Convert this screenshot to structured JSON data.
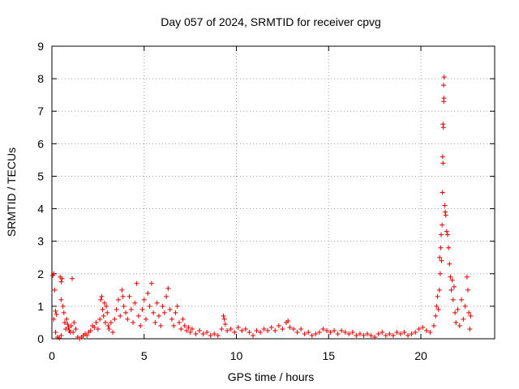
{
  "chart_data": {
    "type": "scatter",
    "title": "Day 057 of 2024, SRMTID for receiver cpvg",
    "xlabel": "GPS time / hours",
    "ylabel": "SRMTID / TECUs",
    "xlim": [
      0,
      24
    ],
    "ylim": [
      0,
      9
    ],
    "xticks": [
      0,
      5,
      10,
      15,
      20
    ],
    "xtick_labels": [
      "0",
      "5",
      "10",
      "15",
      "20"
    ],
    "yticks": [
      0,
      1,
      2,
      3,
      4,
      5,
      6,
      7,
      8,
      9
    ],
    "ytick_labels": [
      "0",
      "1",
      "2",
      "3",
      "4",
      "5",
      "6",
      "7",
      "8",
      "9"
    ],
    "grid": true,
    "marker": "+",
    "color": "#e00000",
    "series": [
      {
        "name": "SRMTID",
        "points": [
          [
            0.05,
            1.95
          ],
          [
            0.1,
            2.0
          ],
          [
            0.15,
            1.5
          ],
          [
            0.2,
            0.85
          ],
          [
            0.25,
            0.75
          ],
          [
            0.1,
            0.6
          ],
          [
            0.2,
            0.2
          ],
          [
            0.3,
            0.05
          ],
          [
            0.4,
            0.02
          ],
          [
            0.5,
            0.1
          ],
          [
            0.45,
            1.9
          ],
          [
            0.5,
            1.75
          ],
          [
            0.55,
            1.85
          ],
          [
            0.5,
            1.2
          ],
          [
            0.6,
            1.0
          ],
          [
            0.65,
            0.8
          ],
          [
            0.7,
            0.5
          ],
          [
            0.75,
            0.3
          ],
          [
            0.8,
            0.6
          ],
          [
            0.85,
            0.45
          ],
          [
            0.9,
            0.35
          ],
          [
            0.95,
            0.25
          ],
          [
            1.0,
            0.2
          ],
          [
            1.05,
            0.4
          ],
          [
            1.1,
            1.85
          ],
          [
            1.15,
            0.2
          ],
          [
            1.2,
            0.5
          ],
          [
            1.3,
            0.3
          ],
          [
            1.4,
            0.05
          ],
          [
            1.5,
            0.0
          ],
          [
            1.6,
            0.05
          ],
          [
            1.7,
            0.1
          ],
          [
            1.8,
            0.15
          ],
          [
            1.9,
            0.1
          ],
          [
            2.0,
            0.2
          ],
          [
            2.1,
            0.25
          ],
          [
            2.2,
            0.4
          ],
          [
            2.3,
            0.35
          ],
          [
            2.4,
            0.5
          ],
          [
            2.5,
            0.3
          ],
          [
            2.6,
            0.6
          ],
          [
            2.65,
            1.2
          ],
          [
            2.7,
            1.3
          ],
          [
            2.75,
            0.9
          ],
          [
            2.8,
            0.7
          ],
          [
            2.85,
            1.1
          ],
          [
            2.9,
            0.5
          ],
          [
            2.95,
            1.0
          ],
          [
            3.0,
            0.8
          ],
          [
            3.05,
            0.4
          ],
          [
            3.1,
            0.3
          ],
          [
            3.2,
            0.5
          ],
          [
            3.3,
            0.2
          ],
          [
            3.4,
            0.6
          ],
          [
            3.5,
            0.9
          ],
          [
            3.6,
            1.2
          ],
          [
            3.7,
            0.7
          ],
          [
            3.8,
            1.5
          ],
          [
            3.85,
            1.3
          ],
          [
            3.9,
            1.0
          ],
          [
            4.0,
            0.8
          ],
          [
            4.1,
            0.6
          ],
          [
            4.2,
            1.3
          ],
          [
            4.3,
            0.9
          ],
          [
            4.4,
            0.5
          ],
          [
            4.5,
            1.1
          ],
          [
            4.6,
            1.7
          ],
          [
            4.7,
            0.7
          ],
          [
            4.8,
            0.4
          ],
          [
            4.9,
            0.9
          ],
          [
            5.0,
            1.2
          ],
          [
            5.1,
            0.6
          ],
          [
            5.2,
            1.4
          ],
          [
            5.3,
            1.0
          ],
          [
            5.4,
            1.7
          ],
          [
            5.5,
            0.8
          ],
          [
            5.6,
            0.5
          ],
          [
            5.7,
            1.1
          ],
          [
            5.8,
            0.7
          ],
          [
            5.9,
            0.4
          ],
          [
            6.0,
            1.0
          ],
          [
            6.1,
            0.8
          ],
          [
            6.2,
            1.3
          ],
          [
            6.3,
            1.55
          ],
          [
            6.4,
            0.9
          ],
          [
            6.5,
            0.6
          ],
          [
            6.6,
            0.4
          ],
          [
            6.7,
            0.8
          ],
          [
            6.8,
            1.0
          ],
          [
            6.9,
            0.5
          ],
          [
            7.0,
            0.3
          ],
          [
            7.1,
            0.6
          ],
          [
            7.2,
            0.4
          ],
          [
            7.3,
            0.25
          ],
          [
            7.4,
            0.35
          ],
          [
            7.5,
            0.2
          ],
          [
            7.6,
            0.3
          ],
          [
            7.8,
            0.15
          ],
          [
            8.0,
            0.25
          ],
          [
            8.2,
            0.15
          ],
          [
            8.4,
            0.2
          ],
          [
            8.6,
            0.1
          ],
          [
            8.8,
            0.15
          ],
          [
            9.0,
            0.1
          ],
          [
            9.2,
            0.3
          ],
          [
            9.3,
            0.7
          ],
          [
            9.35,
            0.6
          ],
          [
            9.4,
            0.45
          ],
          [
            9.5,
            0.25
          ],
          [
            9.7,
            0.3
          ],
          [
            9.9,
            0.2
          ],
          [
            10.1,
            0.35
          ],
          [
            10.3,
            0.25
          ],
          [
            10.5,
            0.3
          ],
          [
            10.7,
            0.2
          ],
          [
            10.9,
            0.1
          ],
          [
            11.1,
            0.25
          ],
          [
            11.3,
            0.2
          ],
          [
            11.5,
            0.3
          ],
          [
            11.7,
            0.25
          ],
          [
            11.9,
            0.35
          ],
          [
            12.1,
            0.25
          ],
          [
            12.3,
            0.4
          ],
          [
            12.5,
            0.3
          ],
          [
            12.7,
            0.5
          ],
          [
            12.8,
            0.55
          ],
          [
            12.9,
            0.35
          ],
          [
            13.1,
            0.3
          ],
          [
            13.3,
            0.2
          ],
          [
            13.5,
            0.3
          ],
          [
            13.7,
            0.15
          ],
          [
            13.9,
            0.2
          ],
          [
            14.1,
            0.1
          ],
          [
            14.3,
            0.15
          ],
          [
            14.5,
            0.2
          ],
          [
            14.7,
            0.3
          ],
          [
            14.9,
            0.25
          ],
          [
            15.1,
            0.2
          ],
          [
            15.3,
            0.25
          ],
          [
            15.5,
            0.15
          ],
          [
            15.7,
            0.25
          ],
          [
            15.9,
            0.2
          ],
          [
            16.1,
            0.15
          ],
          [
            16.3,
            0.2
          ],
          [
            16.5,
            0.1
          ],
          [
            16.7,
            0.15
          ],
          [
            16.9,
            0.1
          ],
          [
            17.1,
            0.15
          ],
          [
            17.3,
            0.1
          ],
          [
            17.5,
            0.05
          ],
          [
            17.7,
            0.15
          ],
          [
            17.9,
            0.2
          ],
          [
            18.1,
            0.1
          ],
          [
            18.3,
            0.15
          ],
          [
            18.5,
            0.1
          ],
          [
            18.7,
            0.2
          ],
          [
            18.9,
            0.15
          ],
          [
            19.1,
            0.2
          ],
          [
            19.3,
            0.1
          ],
          [
            19.5,
            0.15
          ],
          [
            19.7,
            0.2
          ],
          [
            19.9,
            0.3
          ],
          [
            20.1,
            0.35
          ],
          [
            20.3,
            0.25
          ],
          [
            20.5,
            0.2
          ],
          [
            20.7,
            0.4
          ],
          [
            20.8,
            0.7
          ],
          [
            20.85,
            1.0
          ],
          [
            20.9,
            1.3
          ],
          [
            20.95,
            0.9
          ],
          [
            21.0,
            1.5
          ],
          [
            21.02,
            2.5
          ],
          [
            21.05,
            2.0
          ],
          [
            21.08,
            2.8
          ],
          [
            21.1,
            3.2
          ],
          [
            21.12,
            2.4
          ],
          [
            21.15,
            3.5
          ],
          [
            21.17,
            4.5
          ],
          [
            21.2,
            5.4
          ],
          [
            21.18,
            5.6
          ],
          [
            21.22,
            6.5
          ],
          [
            21.2,
            6.6
          ],
          [
            21.24,
            7.3
          ],
          [
            21.25,
            7.4
          ],
          [
            21.23,
            7.8
          ],
          [
            21.26,
            8.05
          ],
          [
            21.3,
            4.1
          ],
          [
            21.32,
            3.9
          ],
          [
            21.35,
            3.8
          ],
          [
            21.4,
            3.3
          ],
          [
            21.45,
            3.2
          ],
          [
            21.5,
            2.8
          ],
          [
            21.55,
            2.3
          ],
          [
            21.6,
            1.9
          ],
          [
            21.65,
            1.5
          ],
          [
            21.7,
            1.8
          ],
          [
            21.75,
            1.2
          ],
          [
            21.8,
            1.6
          ],
          [
            21.85,
            0.8
          ],
          [
            21.9,
            0.5
          ],
          [
            22.0,
            0.9
          ],
          [
            22.1,
            0.4
          ],
          [
            22.2,
            1.2
          ],
          [
            22.3,
            0.6
          ],
          [
            22.4,
            1.0
          ],
          [
            22.5,
            1.9
          ],
          [
            22.55,
            1.5
          ],
          [
            22.6,
            0.8
          ],
          [
            22.65,
            0.3
          ],
          [
            22.7,
            0.7
          ]
        ]
      }
    ]
  }
}
